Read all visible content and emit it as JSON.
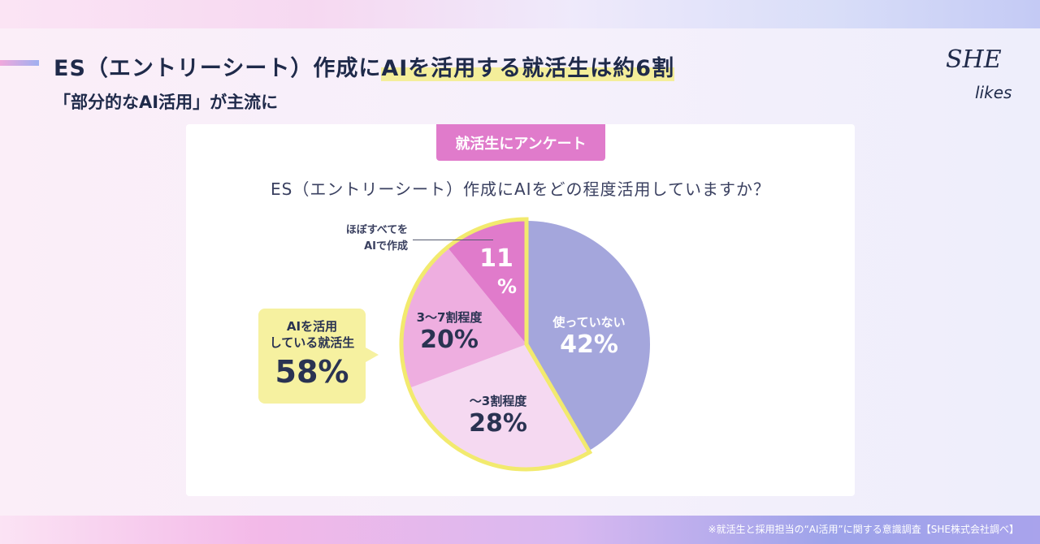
{
  "header": {
    "title_pre": "ES（エントリーシート）作成に",
    "title_highlight": "AIを活用する就活生は約6割",
    "subtitle": "「部分的なAI活用」が主流に"
  },
  "logo": {
    "line1": "SHE",
    "line2": "likes"
  },
  "card": {
    "tag": "就活生にアンケート",
    "question": "ES（エントリーシート）作成にAIをどの程度活用していますか？"
  },
  "callout": {
    "line1": "AIを活用",
    "line2": "している就活生",
    "value": "58%"
  },
  "chart_data": {
    "type": "pie",
    "title": "ES（エントリーシート）作成にAIをどの程度活用していますか？",
    "start": "top",
    "direction": "clockwise",
    "slices": [
      {
        "label": "使っていない",
        "value": 42,
        "display": "42%",
        "color": "#a4a6dc"
      },
      {
        "label": "〜3割程度",
        "value": 28,
        "display": "28%",
        "color": "#f5d9f1"
      },
      {
        "label": "3〜7割程度",
        "value": 20,
        "display": "20%",
        "color": "#eeaee0"
      },
      {
        "label": "ほぼすべてをAIで作成",
        "label_lines": [
          "ほぼすべてを",
          "AIで作成"
        ],
        "value": 11,
        "display_num": "11",
        "display_unit": "%",
        "color": "#e07bcb"
      }
    ],
    "highlight": {
      "label": "AIを活用している就活生",
      "value": 58,
      "color": "#f2ea6e"
    }
  },
  "footnote": "※就活生と採用担当の“AI活用”に関する意識調査【SHE株式会社調べ】"
}
